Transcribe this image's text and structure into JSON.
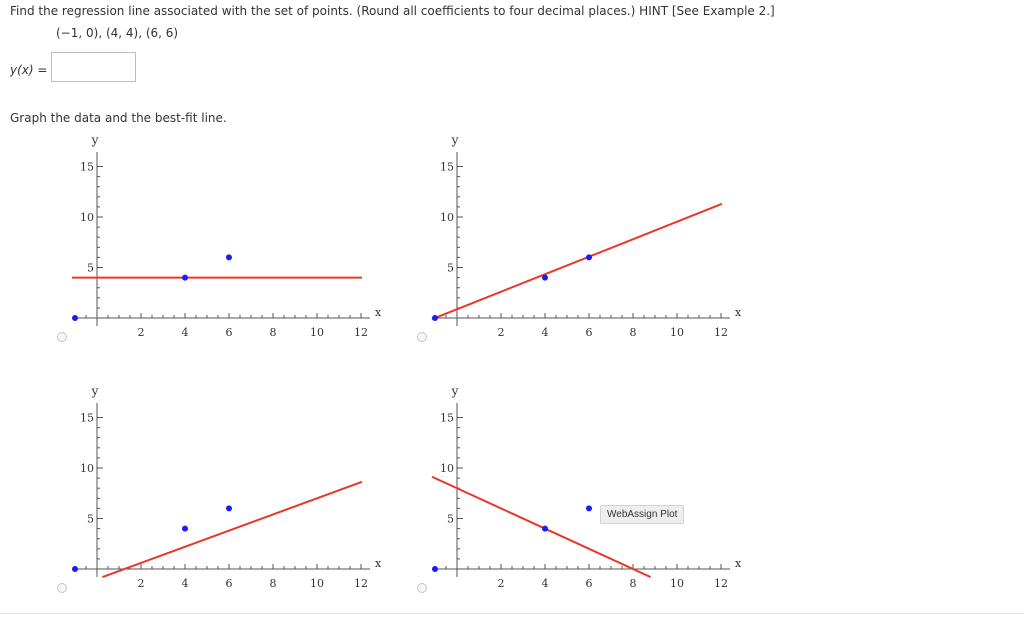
{
  "question": {
    "text": "Find the regression line associated with the set of points. (Round all coefficients to four decimal places.) HINT [See Example 2.]",
    "points_text": "(−1, 0), (4, 4), (6, 6)",
    "answer_label": "y(x) =",
    "answer_value": "",
    "graph_instruction": "Graph the data and the best-fit line."
  },
  "tooltip": "WebAssign Plot",
  "graphs": [
    {
      "x_tick_labels": [
        "2",
        "4",
        "6",
        "8",
        "10",
        "12"
      ],
      "y_tick_labels": [
        "5",
        "10",
        "15"
      ],
      "xlabel": "x",
      "ylabel": "y"
    },
    {
      "x_tick_labels": [
        "2",
        "4",
        "6",
        "8",
        "10",
        "12"
      ],
      "y_tick_labels": [
        "5",
        "10",
        "15"
      ],
      "xlabel": "x",
      "ylabel": "y"
    },
    {
      "x_tick_labels": [
        "2",
        "4",
        "6",
        "8",
        "10",
        "12"
      ],
      "y_tick_labels": [
        "5",
        "10",
        "15"
      ],
      "xlabel": "x",
      "ylabel": "y"
    },
    {
      "x_tick_labels": [
        "2",
        "4",
        "6",
        "8",
        "10",
        "12"
      ],
      "y_tick_labels": [
        "5",
        "10",
        "15"
      ],
      "xlabel": "x",
      "ylabel": "y"
    }
  ],
  "chart_data": [
    {
      "type": "scatter",
      "points": [
        [
          -1,
          0
        ],
        [
          4,
          4
        ],
        [
          6,
          6
        ]
      ],
      "line": {
        "slope": 0,
        "intercept": 4
      },
      "xlim": [
        -1,
        12.5
      ],
      "ylim": [
        -1,
        16
      ],
      "point_color": "#1a1aff",
      "line_color": "#e8372a"
    },
    {
      "type": "scatter",
      "points": [
        [
          -1,
          0
        ],
        [
          4,
          4
        ],
        [
          6,
          6
        ]
      ],
      "line": {
        "slope": 0.8667,
        "intercept": 0.8667
      },
      "xlim": [
        -1,
        12.5
      ],
      "ylim": [
        -1,
        16
      ],
      "point_color": "#1a1aff",
      "line_color": "#e8372a"
    },
    {
      "type": "scatter",
      "points": [
        [
          -1,
          0
        ],
        [
          4,
          4
        ],
        [
          6,
          6
        ]
      ],
      "line": {
        "slope": 0.8,
        "intercept": -1.0
      },
      "xlim": [
        -1,
        12.5
      ],
      "ylim": [
        -1,
        16
      ],
      "point_color": "#1a1aff",
      "line_color": "#e8372a"
    },
    {
      "type": "scatter",
      "points": [
        [
          -1,
          0
        ],
        [
          4,
          4
        ],
        [
          6,
          6
        ]
      ],
      "line": {
        "slope": -1.0,
        "intercept": 8.0
      },
      "xlim": [
        -1,
        12.5
      ],
      "ylim": [
        -1,
        16
      ],
      "point_color": "#1a1aff",
      "line_color": "#e8372a"
    }
  ]
}
